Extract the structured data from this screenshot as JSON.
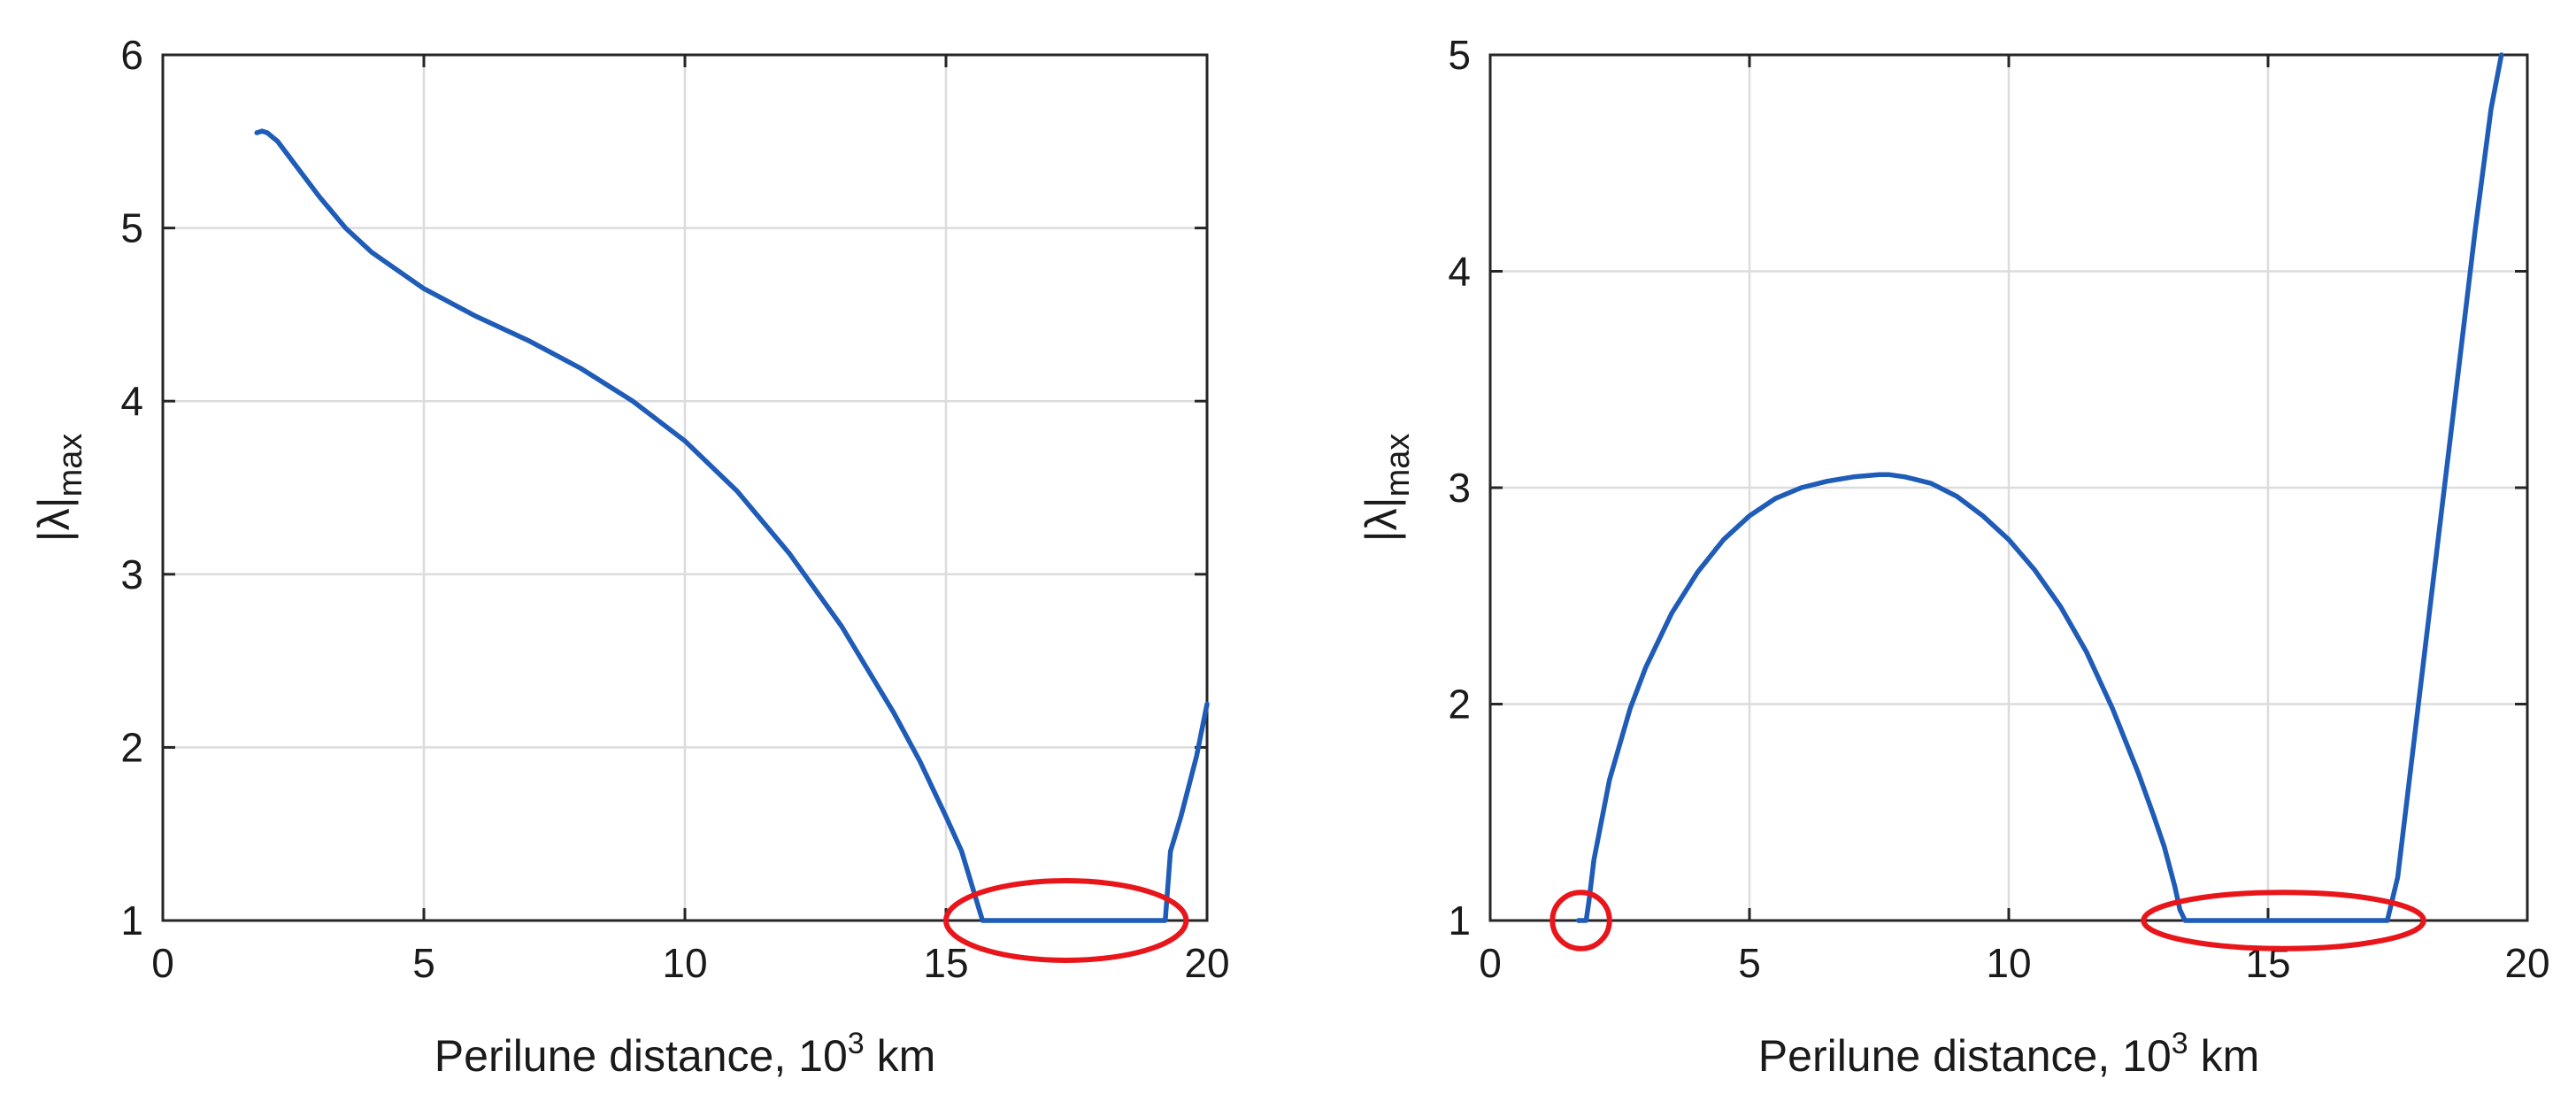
{
  "chart_data": [
    {
      "type": "line",
      "xlabel": {
        "text": "Perilune distance, 10",
        "sup": "3",
        "unit": " km"
      },
      "ylabel": {
        "base": "|λ|",
        "sub": "max"
      },
      "xlim": [
        0,
        20
      ],
      "ylim": [
        1,
        6
      ],
      "xticks": [
        0,
        5,
        10,
        15,
        20
      ],
      "yticks": [
        1,
        2,
        3,
        4,
        5,
        6
      ],
      "grid": true,
      "series_color": "#1f5cb8",
      "series": [
        {
          "x": [
            1.8,
            1.9,
            2.0,
            2.2,
            2.5,
            3.0,
            3.5,
            4.0,
            5.0,
            6.0,
            7.0,
            8.0,
            9.0,
            10.0,
            11.0,
            12.0,
            13.0,
            14.0,
            14.5,
            15.0,
            15.3,
            15.5,
            15.65,
            15.7,
            16.5,
            17.5,
            18.5,
            19.0,
            19.2,
            19.3,
            19.5,
            19.8,
            20.0
          ],
          "y": [
            5.55,
            5.56,
            5.55,
            5.5,
            5.38,
            5.18,
            5.0,
            4.86,
            4.65,
            4.49,
            4.35,
            4.19,
            4.0,
            3.77,
            3.48,
            3.12,
            2.7,
            2.2,
            1.92,
            1.6,
            1.4,
            1.2,
            1.05,
            1.0,
            1.0,
            1.0,
            1.0,
            1.0,
            1.0,
            1.4,
            1.6,
            1.95,
            2.25
          ]
        }
      ],
      "markers": [
        {
          "shape": "ellipse",
          "cx": 17.3,
          "cy": 1.0,
          "rx": 2.3,
          "ry": 0.23,
          "color": "#e8161b"
        }
      ]
    },
    {
      "type": "line",
      "xlabel": {
        "text": "Perilune distance, 10",
        "sup": "3",
        "unit": " km"
      },
      "ylabel": {
        "base": "|λ|",
        "sub": "max"
      },
      "xlim": [
        0,
        20
      ],
      "ylim": [
        1,
        5
      ],
      "xticks": [
        0,
        5,
        10,
        15,
        20
      ],
      "yticks": [
        1,
        2,
        3,
        4,
        5
      ],
      "grid": true,
      "series_color": "#1f5cb8",
      "series": [
        {
          "x": [
            1.7,
            1.85,
            1.9,
            2.0,
            2.3,
            2.7,
            3.0,
            3.5,
            4.0,
            4.5,
            5.0,
            5.5,
            6.0,
            6.5,
            7.0,
            7.5,
            7.7,
            8.0,
            8.5,
            9.0,
            9.5,
            10.0,
            10.5,
            11.0,
            11.5,
            12.0,
            12.5,
            12.8,
            13.0,
            13.2,
            13.3,
            13.4,
            14.5,
            15.5,
            16.5,
            17.3,
            17.5,
            17.8,
            18.2,
            18.6,
            19.0,
            19.3,
            19.5
          ],
          "y": [
            1.0,
            1.0,
            1.08,
            1.28,
            1.65,
            1.98,
            2.17,
            2.42,
            2.61,
            2.76,
            2.87,
            2.95,
            3.0,
            3.03,
            3.05,
            3.06,
            3.06,
            3.05,
            3.02,
            2.96,
            2.87,
            2.76,
            2.62,
            2.45,
            2.24,
            1.98,
            1.68,
            1.48,
            1.34,
            1.16,
            1.05,
            1.0,
            1.0,
            1.0,
            1.0,
            1.0,
            1.2,
            1.8,
            2.6,
            3.4,
            4.2,
            4.75,
            5.0
          ]
        }
      ],
      "markers": [
        {
          "shape": "ellipse",
          "cx": 1.75,
          "cy": 1.0,
          "rx": 0.55,
          "ry": 0.13,
          "color": "#e8161b"
        },
        {
          "shape": "ellipse",
          "cx": 15.3,
          "cy": 1.0,
          "rx": 2.7,
          "ry": 0.13,
          "color": "#e8161b"
        }
      ]
    }
  ]
}
